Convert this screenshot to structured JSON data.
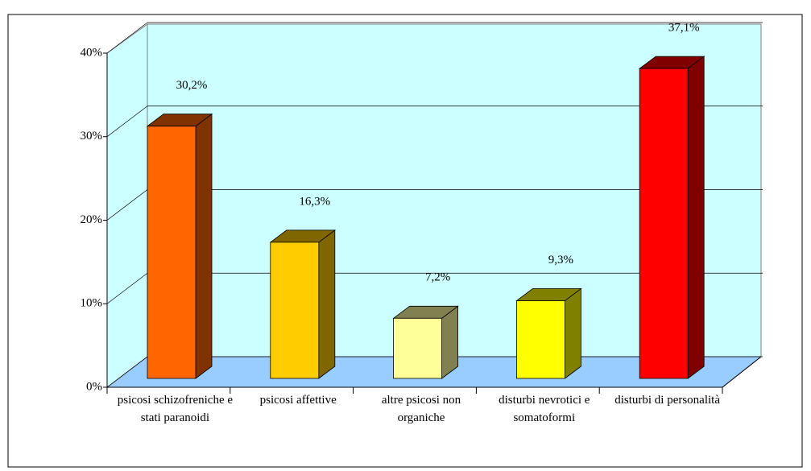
{
  "chart_data": {
    "type": "bar3d",
    "categories": [
      "psicosi schizofreniche e stati paranoidi",
      "psicosi affettive",
      "altre psicosi non organiche",
      "disturbi nevrotici e somatoformi",
      "disturbi di personalità"
    ],
    "values": [
      30.2,
      16.3,
      7.2,
      9.3,
      37.1
    ],
    "value_labels": [
      "30,2%",
      "16,3%",
      "7,2%",
      "9,3%",
      "37,1%"
    ],
    "colors": [
      "#ff6600",
      "#ffcc00",
      "#ffff99",
      "#ffff00",
      "#ff0000"
    ],
    "side_colors": [
      "#803300",
      "#806600",
      "#808050",
      "#808000",
      "#800000"
    ],
    "ylim": [
      0,
      40
    ],
    "yticks": [
      {
        "value": 0,
        "label": "0%"
      },
      {
        "value": 10,
        "label": "10%"
      },
      {
        "value": 20,
        "label": "20%"
      },
      {
        "value": 30,
        "label": "30%"
      },
      {
        "value": 40,
        "label": "40%"
      }
    ],
    "grid": true
  }
}
